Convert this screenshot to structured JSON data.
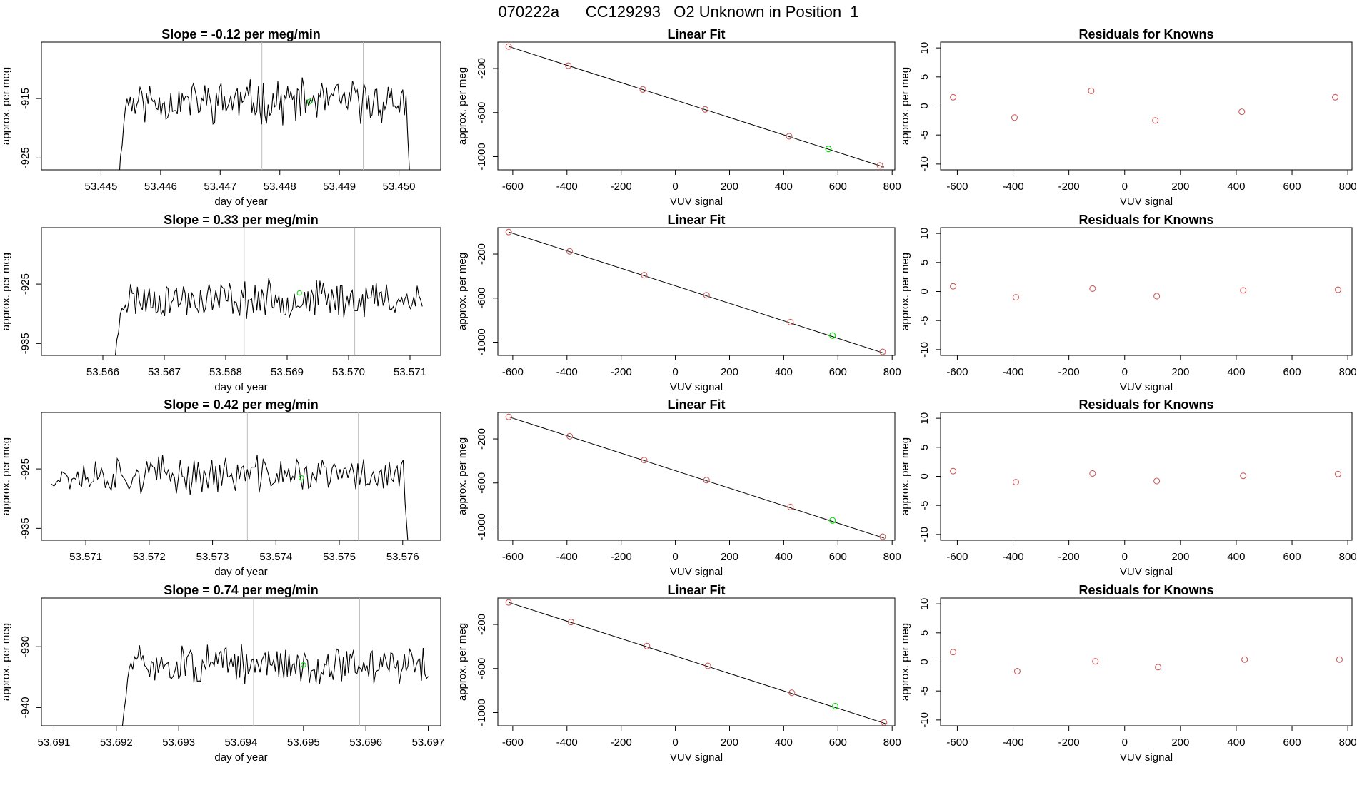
{
  "figure": {
    "title": "070222a      CC129293   O2 Unknown in Position  1"
  },
  "colors": {
    "line": "#000000",
    "known": "#cd5c5c",
    "unknown": "#00dd00",
    "guide": "#bebebe"
  },
  "chart_data": [
    {
      "type": "line",
      "title": "Slope =  -0.12  per meg/min",
      "xlabel": "day of year",
      "ylabel": "approx. per meg",
      "xlim": [
        53.444,
        53.4507
      ],
      "ylim": [
        -927,
        -905.5
      ],
      "xticks": [
        "53.445",
        "53.446",
        "53.447",
        "53.448",
        "53.449",
        "53.450"
      ],
      "yticks": [
        "-915",
        "-925"
      ],
      "ytick_values": [
        -915,
        -925
      ],
      "guides": [
        53.4477,
        53.4494
      ],
      "series_start": 53.4453,
      "series_end": 53.4502,
      "base": -915.5,
      "amplitude": 3.0,
      "start_from": -932,
      "end_to": -932,
      "seed": 11,
      "unknown_point": [
        53.4485,
        -915.5
      ]
    },
    {
      "type": "scatter",
      "title": "Linear Fit",
      "xlabel": "VUV signal",
      "ylabel": "approx. per meg",
      "xlim": [
        -655,
        810
      ],
      "ylim": [
        -1120,
        40
      ],
      "xticks": [
        "-600",
        "-400",
        "-200",
        "0",
        "200",
        "400",
        "600",
        "800"
      ],
      "yticks": [
        "-200",
        "-600",
        "-1000"
      ],
      "ytick_values": [
        -200,
        -600,
        -1000
      ],
      "fit_line": {
        "x": [
          -615,
          770
        ],
        "y": [
          0,
          -1095
        ]
      },
      "known_points": [
        [
          -615,
          0
        ],
        [
          -395,
          -174
        ],
        [
          -120,
          -390
        ],
        [
          110,
          -571
        ],
        [
          420,
          -815
        ],
        [
          755,
          -1080
        ]
      ],
      "unknown_point": [
        565,
        -930
      ]
    },
    {
      "type": "scatter",
      "title": "Residuals for Knowns",
      "xlabel": "VUV signal",
      "ylabel": "approx. per meg",
      "xlim": [
        -660,
        815
      ],
      "ylim": [
        -11,
        11
      ],
      "xticks": [
        "-600",
        "-400",
        "-200",
        "0",
        "200",
        "400",
        "600",
        "800"
      ],
      "yticks": [
        "10",
        "5",
        "0",
        "-5",
        "-10"
      ],
      "ytick_values": [
        10,
        5,
        0,
        -5,
        -10
      ],
      "known_points": [
        [
          -615,
          1.5
        ],
        [
          -395,
          -2.0
        ],
        [
          -120,
          2.6
        ],
        [
          110,
          -2.5
        ],
        [
          420,
          -1.0
        ],
        [
          755,
          1.5
        ]
      ]
    },
    {
      "type": "line",
      "title": "Slope =  0.33  per meg/min",
      "xlabel": "day of year",
      "ylabel": "approx. per meg",
      "xlim": [
        53.565,
        53.5715
      ],
      "ylim": [
        -937,
        -915.5
      ],
      "xticks": [
        "53.566",
        "53.567",
        "53.568",
        "53.569",
        "53.570",
        "53.571"
      ],
      "yticks": [
        "-925",
        "-935"
      ],
      "ytick_values": [
        -925,
        -935
      ],
      "guides": [
        53.5683,
        53.5701
      ],
      "series_start": 53.5662,
      "series_end": 53.5712,
      "base": -927.5,
      "amplitude": 2.6,
      "start_from": -940,
      "end_to": -927.5,
      "seed": 23,
      "unknown_point": [
        53.5692,
        -926.5
      ]
    },
    {
      "type": "scatter",
      "title": "Linear Fit",
      "xlabel": "VUV signal",
      "ylabel": "approx. per meg",
      "xlim": [
        -655,
        810
      ],
      "ylim": [
        -1120,
        40
      ],
      "xticks": [
        "-600",
        "-400",
        "-200",
        "0",
        "200",
        "400",
        "600",
        "800"
      ],
      "yticks": [
        "-200",
        "-600",
        "-1000"
      ],
      "ytick_values": [
        -200,
        -600,
        -1000
      ],
      "fit_line": {
        "x": [
          -615,
          770
        ],
        "y": [
          0,
          -1100
        ]
      },
      "known_points": [
        [
          -615,
          0
        ],
        [
          -390,
          -176
        ],
        [
          -115,
          -392
        ],
        [
          115,
          -574
        ],
        [
          425,
          -818
        ],
        [
          765,
          -1088
        ]
      ],
      "unknown_point": [
        580,
        -940
      ]
    },
    {
      "type": "scatter",
      "title": "Residuals for Knowns",
      "xlabel": "VUV signal",
      "ylabel": "approx. per meg",
      "xlim": [
        -660,
        815
      ],
      "ylim": [
        -11,
        11
      ],
      "xticks": [
        "-600",
        "-400",
        "-200",
        "0",
        "200",
        "400",
        "600",
        "800"
      ],
      "yticks": [
        "10",
        "5",
        "0",
        "-5",
        "-10"
      ],
      "ytick_values": [
        10,
        5,
        0,
        -5,
        -10
      ],
      "known_points": [
        [
          -615,
          0.9
        ],
        [
          -390,
          -1.0
        ],
        [
          -115,
          0.5
        ],
        [
          115,
          -0.8
        ],
        [
          425,
          0.2
        ],
        [
          765,
          0.3
        ]
      ]
    },
    {
      "type": "line",
      "title": "Slope =  0.42  per meg/min",
      "xlabel": "day of year",
      "ylabel": "approx. per meg",
      "xlim": [
        53.5703,
        53.5766
      ],
      "ylim": [
        -937,
        -915.5
      ],
      "xticks": [
        "53.571",
        "53.572",
        "53.573",
        "53.574",
        "53.575",
        "53.576"
      ],
      "yticks": [
        "-925",
        "-935"
      ],
      "ytick_values": [
        -925,
        -935
      ],
      "guides": [
        53.57355,
        53.5753
      ],
      "series_start": 53.5705,
      "series_end": 53.5761,
      "base": -926.0,
      "amplitude": 2.6,
      "start_from": -927.5,
      "end_to": -940,
      "seed": 37,
      "unknown_point": [
        53.5744,
        -926.5
      ]
    },
    {
      "type": "scatter",
      "title": "Linear Fit",
      "xlabel": "VUV signal",
      "ylabel": "approx. per meg",
      "xlim": [
        -655,
        810
      ],
      "ylim": [
        -1120,
        40
      ],
      "xticks": [
        "-600",
        "-400",
        "-200",
        "0",
        "200",
        "400",
        "600",
        "800"
      ],
      "yticks": [
        "-200",
        "-600",
        "-1000"
      ],
      "ytick_values": [
        -200,
        -600,
        -1000
      ],
      "fit_line": {
        "x": [
          -615,
          770
        ],
        "y": [
          0,
          -1100
        ]
      },
      "known_points": [
        [
          -615,
          0
        ],
        [
          -390,
          -176
        ],
        [
          -115,
          -392
        ],
        [
          115,
          -574
        ],
        [
          425,
          -818
        ],
        [
          765,
          -1088
        ]
      ],
      "unknown_point": [
        580,
        -940
      ]
    },
    {
      "type": "scatter",
      "title": "Residuals for Knowns",
      "xlabel": "VUV signal",
      "ylabel": "approx. per meg",
      "xlim": [
        -660,
        815
      ],
      "ylim": [
        -11,
        11
      ],
      "xticks": [
        "-600",
        "-400",
        "-200",
        "0",
        "200",
        "400",
        "600",
        "800"
      ],
      "yticks": [
        "10",
        "5",
        "0",
        "-5",
        "-10"
      ],
      "ytick_values": [
        10,
        5,
        0,
        -5,
        -10
      ],
      "known_points": [
        [
          -615,
          0.9
        ],
        [
          -390,
          -1.0
        ],
        [
          -115,
          0.5
        ],
        [
          115,
          -0.8
        ],
        [
          425,
          0.1
        ],
        [
          765,
          0.4
        ]
      ]
    },
    {
      "type": "line",
      "title": "Slope =  0.74  per meg/min",
      "xlabel": "day of year",
      "ylabel": "approx. per meg",
      "xlim": [
        53.6908,
        53.6972
      ],
      "ylim": [
        -943,
        -922
      ],
      "xticks": [
        "53.691",
        "53.692",
        "53.693",
        "53.694",
        "53.695",
        "53.696",
        "53.697"
      ],
      "yticks": [
        "-930",
        "-940"
      ],
      "ytick_values": [
        -930,
        -940
      ],
      "guides": [
        53.6942,
        53.6959
      ],
      "series_start": 53.6921,
      "series_end": 53.697,
      "base": -933.0,
      "amplitude": 2.6,
      "start_from": -946,
      "end_to": -933,
      "seed": 51,
      "unknown_point": [
        53.695,
        -933.0
      ]
    },
    {
      "type": "scatter",
      "title": "Linear Fit",
      "xlabel": "VUV signal",
      "ylabel": "approx. per meg",
      "xlim": [
        -655,
        810
      ],
      "ylim": [
        -1120,
        40
      ],
      "xticks": [
        "-600",
        "-400",
        "-200",
        "0",
        "200",
        "400",
        "600",
        "800"
      ],
      "yticks": [
        "-200",
        "-600",
        "-1000"
      ],
      "ytick_values": [
        -200,
        -600,
        -1000
      ],
      "fit_line": {
        "x": [
          -615,
          775
        ],
        "y": [
          0,
          -1100
        ]
      },
      "known_points": [
        [
          -615,
          0
        ],
        [
          -385,
          -178
        ],
        [
          -105,
          -396
        ],
        [
          120,
          -576
        ],
        [
          430,
          -820
        ],
        [
          770,
          -1090
        ]
      ],
      "unknown_point": [
        590,
        -942
      ]
    },
    {
      "type": "scatter",
      "title": "Residuals for Knowns",
      "xlabel": "VUV signal",
      "ylabel": "approx. per meg",
      "xlim": [
        -660,
        815
      ],
      "ylim": [
        -11,
        11
      ],
      "xticks": [
        "-600",
        "-400",
        "-200",
        "0",
        "200",
        "400",
        "600",
        "800"
      ],
      "yticks": [
        "10",
        "5",
        "0",
        "-5",
        "-10"
      ],
      "ytick_values": [
        10,
        5,
        0,
        -5,
        -10
      ],
      "known_points": [
        [
          -615,
          1.7
        ],
        [
          -385,
          -1.6
        ],
        [
          -105,
          0.1
        ],
        [
          120,
          -0.9
        ],
        [
          430,
          0.4
        ],
        [
          770,
          0.4
        ]
      ]
    }
  ]
}
